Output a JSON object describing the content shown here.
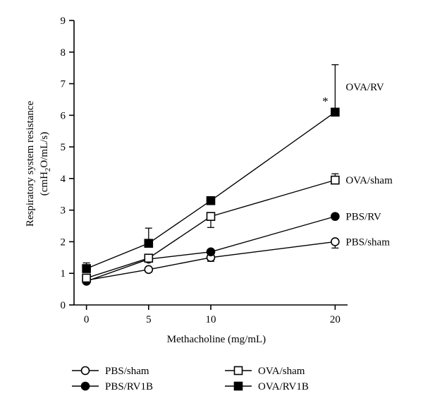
{
  "chart_data": {
    "type": "line",
    "xlabel": "Methacholine (mg/mL)",
    "ylabel_line1": "Respiratory system resistance",
    "ylabel_line2_parts": [
      "(cmH",
      "2",
      "O/mL/s)"
    ],
    "x": [
      0,
      5,
      10,
      20
    ],
    "x_ticks": [
      "0",
      "5",
      "10",
      "20"
    ],
    "xlim": [
      -1,
      21
    ],
    "ylim": [
      0,
      9
    ],
    "y_ticks": [
      "0",
      "1",
      "2",
      "3",
      "4",
      "5",
      "6",
      "7",
      "8",
      "9"
    ],
    "grid": false,
    "series": [
      {
        "name": "PBS/sham",
        "marker": "circle-open",
        "values": [
          0.78,
          1.12,
          1.5,
          2.0
        ],
        "errors": [
          0.05,
          0.08,
          0.12,
          0.2
        ],
        "end_label": "PBS/sham"
      },
      {
        "name": "PBS/RV1B",
        "marker": "circle-filled",
        "values": [
          0.75,
          1.45,
          1.68,
          2.8
        ],
        "errors": [
          0.05,
          0.08,
          0.15,
          0.05
        ],
        "end_label": "PBS/RV"
      },
      {
        "name": "OVA/sham",
        "marker": "square-open",
        "values": [
          0.85,
          1.48,
          2.8,
          3.95
        ],
        "errors": [
          0.05,
          0.1,
          0.35,
          0.2
        ],
        "end_label": "OVA/sham"
      },
      {
        "name": "OVA/RV1B",
        "marker": "square-filled",
        "values": [
          1.15,
          1.95,
          3.3,
          6.1
        ],
        "errors": [
          0.18,
          0.48,
          0.12,
          1.5
        ],
        "end_label": "OVA/RV"
      }
    ],
    "annotations": [
      {
        "text": "*",
        "x": 20,
        "y": 6.45
      }
    ],
    "legend": {
      "placement": "bottom",
      "items": [
        {
          "series": 0,
          "label": "PBS/sham"
        },
        {
          "series": 2,
          "label": "OVA/sham"
        },
        {
          "series": 1,
          "label": "PBS/RV1B"
        },
        {
          "series": 3,
          "label": "OVA/RV1B"
        }
      ]
    }
  }
}
